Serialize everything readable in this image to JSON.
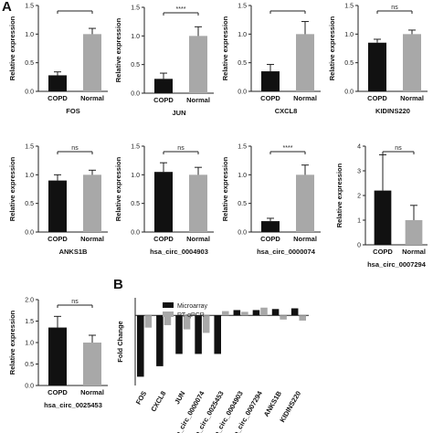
{
  "figure": {
    "panel_a_label": "A",
    "panel_b_label": "B"
  },
  "colors": {
    "copd": "#111111",
    "normal": "#a8a8a8",
    "microarray": "#111111",
    "rtqpcr": "#a8a8a8"
  },
  "chart_data": [
    {
      "type": "bar",
      "title": "FOS",
      "ylabel": "Relative expression",
      "categories": [
        "COPD",
        "Normal"
      ],
      "values": [
        0.28,
        1.0
      ],
      "errors": [
        0.06,
        0.1
      ],
      "ylim": [
        0,
        1.5
      ],
      "yticks": [
        "0.0",
        "0.5",
        "1.0",
        "1.5"
      ],
      "significance": ""
    },
    {
      "type": "bar",
      "title": "JUN",
      "ylabel": "Relative expression",
      "categories": [
        "COPD",
        "Normal"
      ],
      "values": [
        0.25,
        1.0
      ],
      "errors": [
        0.1,
        0.16
      ],
      "ylim": [
        0,
        1.5
      ],
      "yticks": [
        "0.0",
        "0.5",
        "1.0",
        "1.5"
      ],
      "significance": "****"
    },
    {
      "type": "bar",
      "title": "CXCL8",
      "ylabel": "Relative expression",
      "categories": [
        "COPD",
        "Normal"
      ],
      "values": [
        0.35,
        1.0
      ],
      "errors": [
        0.12,
        0.22
      ],
      "ylim": [
        0,
        1.5
      ],
      "yticks": [
        "0.0",
        "0.5",
        "1.0",
        "1.5"
      ],
      "significance": ""
    },
    {
      "type": "bar",
      "title": "KIDINS220",
      "ylabel": "Relative expression",
      "categories": [
        "COPD",
        "Normal"
      ],
      "values": [
        0.85,
        1.0
      ],
      "errors": [
        0.06,
        0.07
      ],
      "ylim": [
        0,
        1.5
      ],
      "yticks": [
        "0.0",
        "0.5",
        "1.0",
        "1.5"
      ],
      "significance": "ns"
    },
    {
      "type": "bar",
      "title": "ANKS1B",
      "ylabel": "Relative expression",
      "categories": [
        "COPD",
        "Normal"
      ],
      "values": [
        0.9,
        1.0
      ],
      "errors": [
        0.1,
        0.08
      ],
      "ylim": [
        0,
        1.5
      ],
      "yticks": [
        "0.0",
        "0.5",
        "1.0",
        "1.5"
      ],
      "significance": "ns"
    },
    {
      "type": "bar",
      "title": "hsa_circ_0004903",
      "ylabel": "Relative expression",
      "categories": [
        "COPD",
        "Normal"
      ],
      "values": [
        1.05,
        1.0
      ],
      "errors": [
        0.16,
        0.13
      ],
      "ylim": [
        0,
        1.5
      ],
      "yticks": [
        "0.0",
        "0.5",
        "1.0",
        "1.5"
      ],
      "significance": "ns"
    },
    {
      "type": "bar",
      "title": "hsa_circ_0000074",
      "ylabel": "Relative expression",
      "categories": [
        "COPD",
        "Normal"
      ],
      "values": [
        0.19,
        1.0
      ],
      "errors": [
        0.05,
        0.17
      ],
      "ylim": [
        0,
        1.5
      ],
      "yticks": [
        "0.0",
        "0.5",
        "1.0",
        "1.5"
      ],
      "significance": "****"
    },
    {
      "type": "bar",
      "title": "hsa_circ_0007294",
      "ylabel": "Relative expression",
      "categories": [
        "COPD",
        "Normal"
      ],
      "values": [
        2.2,
        1.0
      ],
      "errors": [
        1.45,
        0.6
      ],
      "ylim": [
        0,
        4
      ],
      "yticks": [
        "0",
        "1",
        "2",
        "3",
        "4"
      ],
      "significance": "ns"
    },
    {
      "type": "bar",
      "title": "hsa_circ_0025453",
      "ylabel": "Relative expression",
      "categories": [
        "COPD",
        "Normal"
      ],
      "values": [
        1.35,
        1.0
      ],
      "errors": [
        0.26,
        0.17
      ],
      "ylim": [
        0,
        2.0
      ],
      "yticks": [
        "0.0",
        "0.5",
        "1.0",
        "1.5",
        "2.0"
      ],
      "significance": "ns"
    },
    {
      "type": "bar",
      "ylabel": "Fold Change",
      "categories": [
        "FOS",
        "CXCL8",
        "JUN",
        "hsa_circ_0000074",
        "hsa_circ_0025453",
        "hsa_circ_0004903",
        "hsa_circ_0007294",
        "ANKS1B",
        "KIDINS220"
      ],
      "series": [
        {
          "name": "Microarray",
          "values": [
            -17.5,
            -14.5,
            -11,
            -11,
            -11,
            1.5,
            1.5,
            1.8,
            2.0
          ]
        },
        {
          "name": "RT-qPCR",
          "values": [
            -3.5,
            -2.8,
            -4.0,
            -5.0,
            1.2,
            1.0,
            2.2,
            -1.2,
            -1.5
          ]
        }
      ],
      "ylim": [
        -20,
        5
      ],
      "legend_position": "top-left"
    }
  ]
}
